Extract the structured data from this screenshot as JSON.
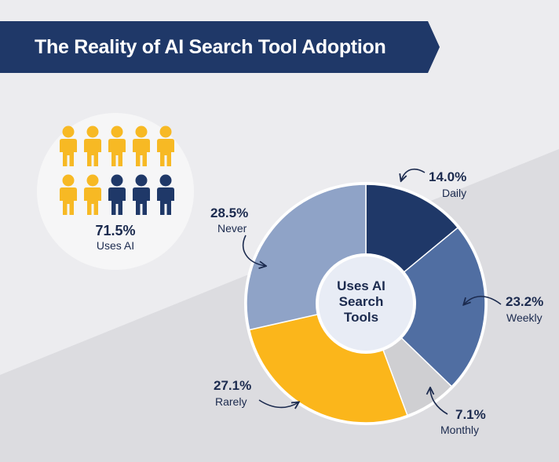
{
  "title": "The Reality of AI Search Tool Adoption",
  "people_summary": {
    "percent": "71.5%",
    "label": "Uses AI",
    "total_icons": 10,
    "highlighted_icons": 7,
    "highlight_color": "#f7b924",
    "base_color": "#1f3868"
  },
  "colors": {
    "banner": "#1f3868",
    "background": "#ececef"
  },
  "chart_data": {
    "type": "pie",
    "donut": true,
    "center_label": "Uses AI Search Tools",
    "center_lines": [
      "Uses AI",
      "Search",
      "Tools"
    ],
    "slices": [
      {
        "name": "Daily",
        "value": 14.0,
        "label": "14.0%",
        "color": "#1f3868"
      },
      {
        "name": "Weekly",
        "value": 23.2,
        "label": "23.2%",
        "color": "#506ea2"
      },
      {
        "name": "Monthly",
        "value": 7.1,
        "label": "7.1%",
        "color": "#cfcfd2"
      },
      {
        "name": "Rarely",
        "value": 27.1,
        "label": "27.1%",
        "color": "#fbb61b"
      },
      {
        "name": "Never",
        "value": 28.5,
        "label": "28.5%",
        "color": "#8fa3c7"
      }
    ]
  }
}
